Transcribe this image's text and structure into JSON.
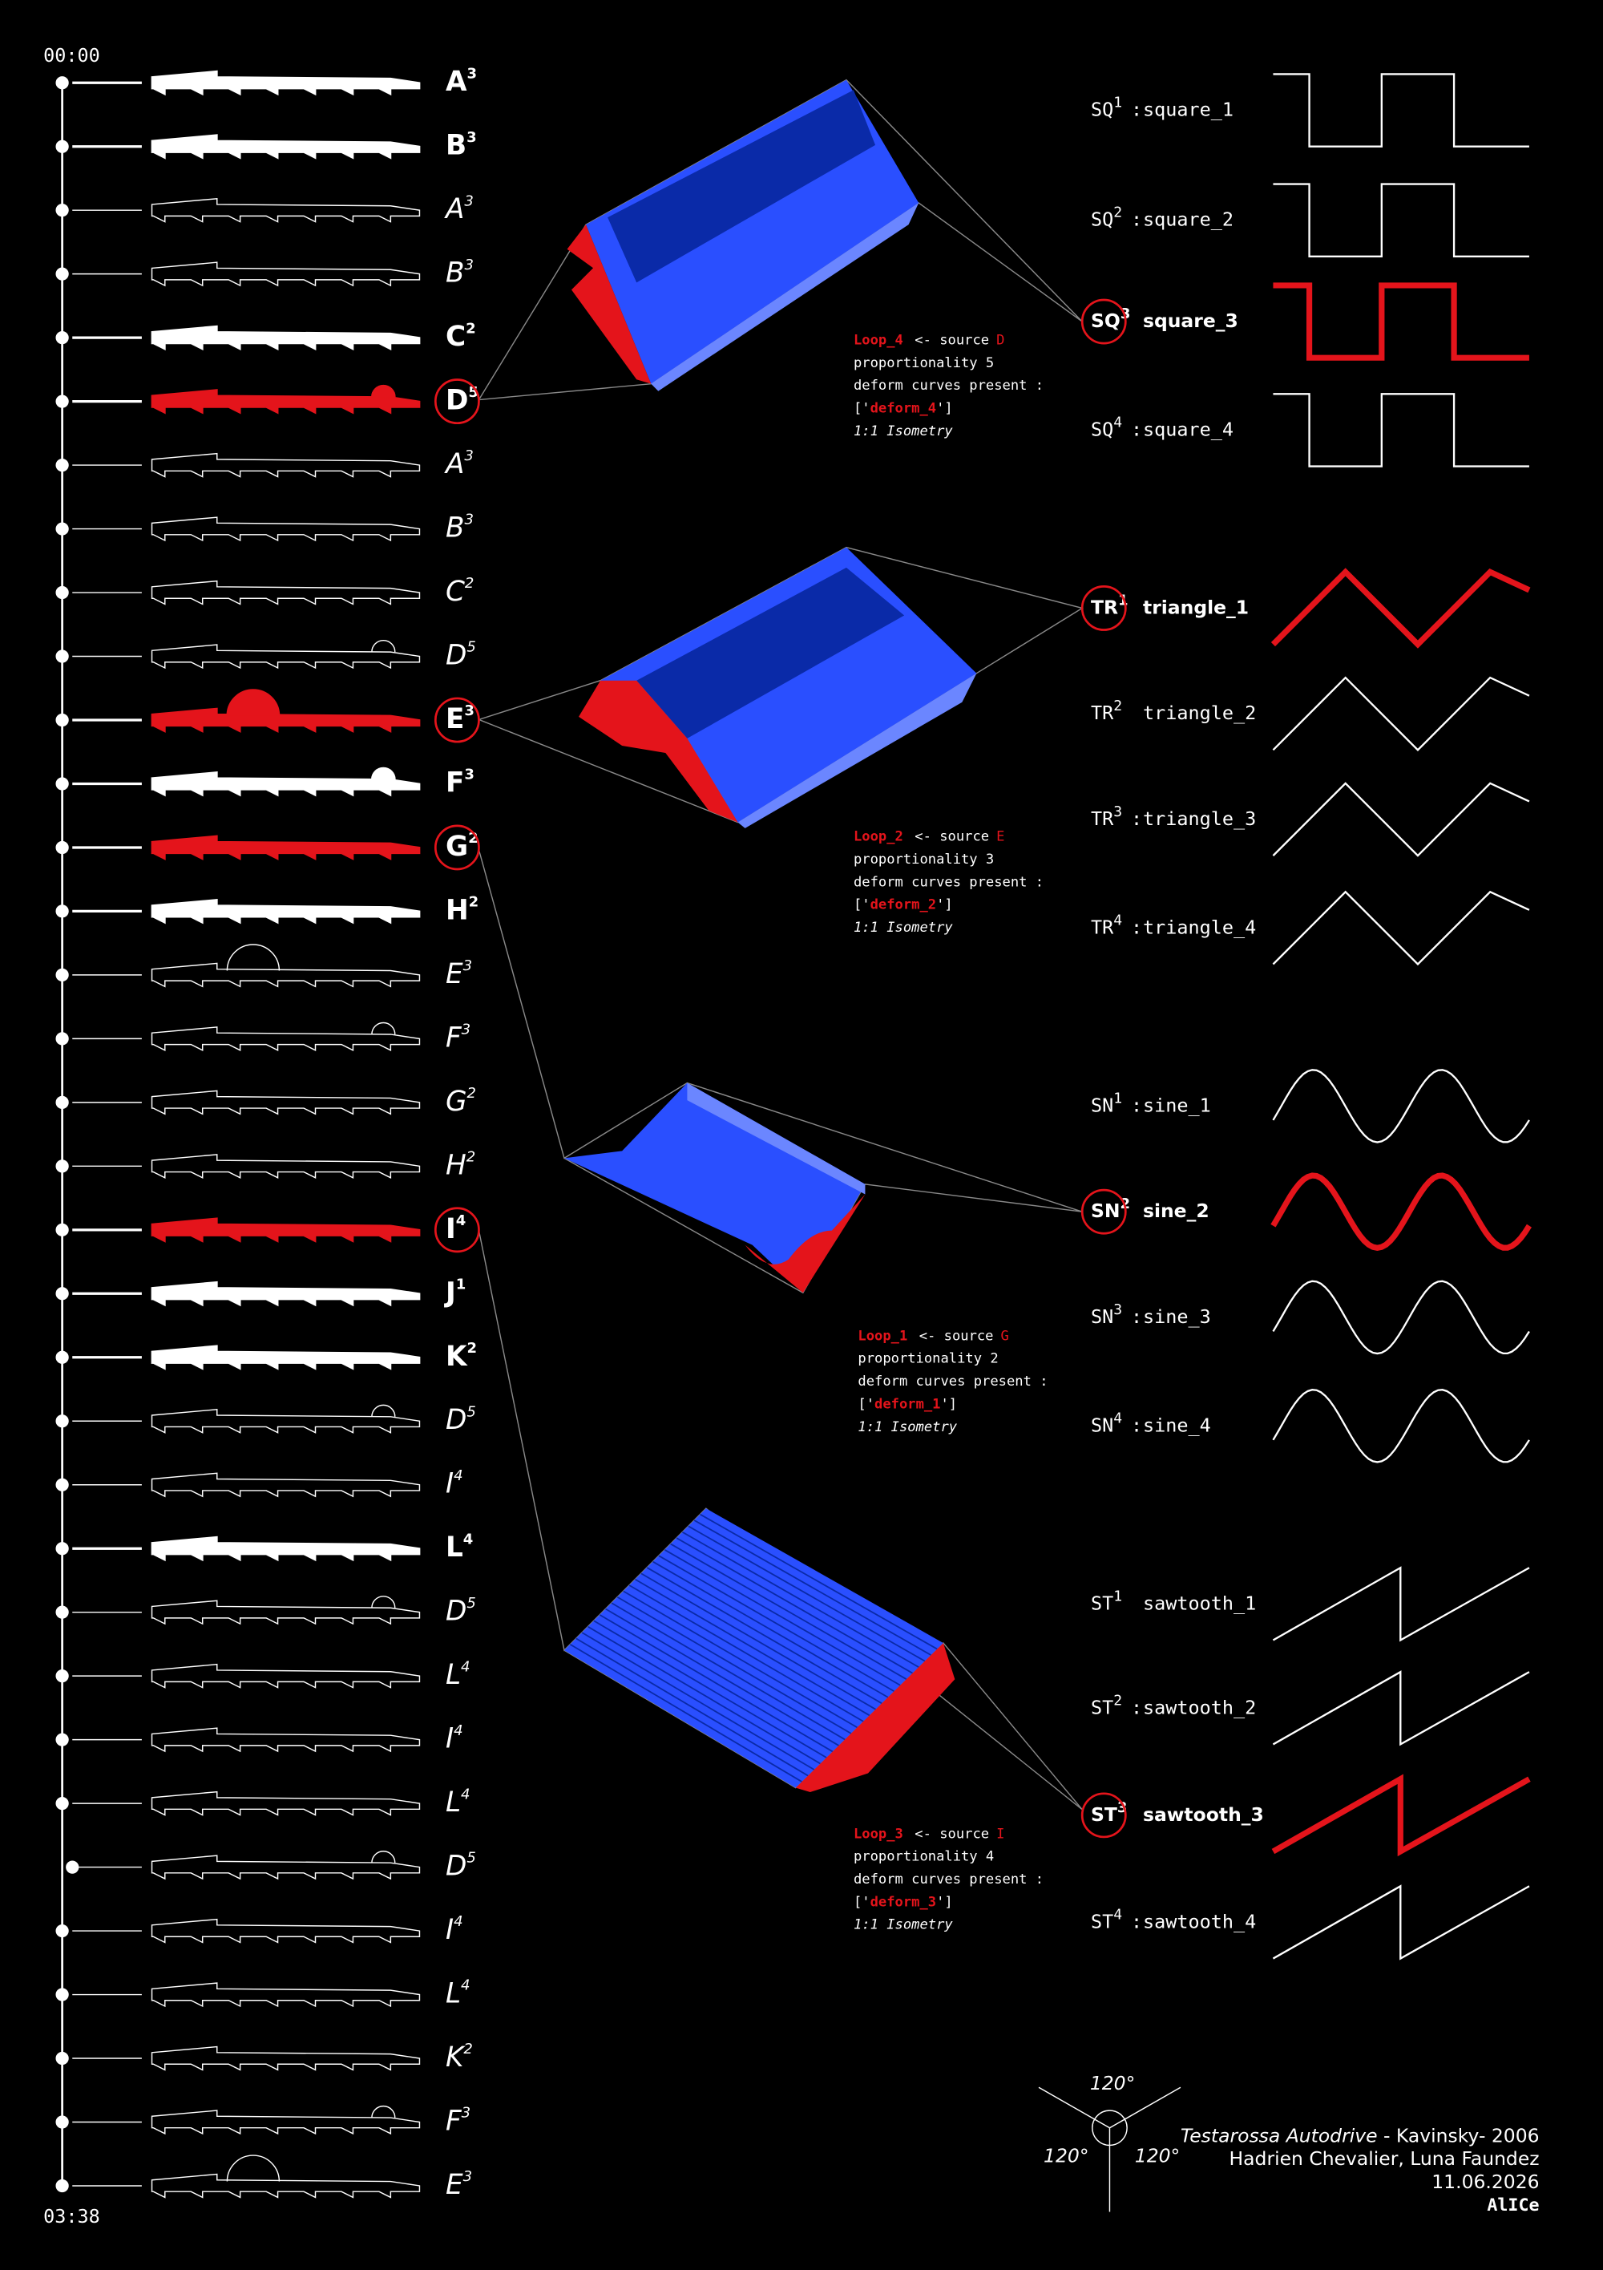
{
  "times": {
    "start": "00:00",
    "end": "03:38"
  },
  "timeline": [
    {
      "letter": "A",
      "sup": "3",
      "style": "filled"
    },
    {
      "letter": "B",
      "sup": "3",
      "style": "filled"
    },
    {
      "letter": "A",
      "sup": "3",
      "style": "outline"
    },
    {
      "letter": "B",
      "sup": "3",
      "style": "outline"
    },
    {
      "letter": "C",
      "sup": "2",
      "style": "filled"
    },
    {
      "letter": "D",
      "sup": "5",
      "style": "red"
    },
    {
      "letter": "A",
      "sup": "3",
      "style": "outline"
    },
    {
      "letter": "B",
      "sup": "3",
      "style": "outline"
    },
    {
      "letter": "C",
      "sup": "2",
      "style": "outline"
    },
    {
      "letter": "D",
      "sup": "5",
      "style": "outline"
    },
    {
      "letter": "E",
      "sup": "3",
      "style": "red"
    },
    {
      "letter": "F",
      "sup": "3",
      "style": "filled"
    },
    {
      "letter": "G",
      "sup": "2",
      "style": "red"
    },
    {
      "letter": "H",
      "sup": "2",
      "style": "filled"
    },
    {
      "letter": "E",
      "sup": "3",
      "style": "outline"
    },
    {
      "letter": "F",
      "sup": "3",
      "style": "outline"
    },
    {
      "letter": "G",
      "sup": "2",
      "style": "outline"
    },
    {
      "letter": "H",
      "sup": "2",
      "style": "outline"
    },
    {
      "letter": "I",
      "sup": "4",
      "style": "red"
    },
    {
      "letter": "J",
      "sup": "1",
      "style": "filled"
    },
    {
      "letter": "K",
      "sup": "2",
      "style": "filled"
    },
    {
      "letter": "D",
      "sup": "5",
      "style": "outline"
    },
    {
      "letter": "I",
      "sup": "4",
      "style": "outline"
    },
    {
      "letter": "L",
      "sup": "4",
      "style": "filled"
    },
    {
      "letter": "D",
      "sup": "5",
      "style": "outline"
    },
    {
      "letter": "L",
      "sup": "4",
      "style": "outline"
    },
    {
      "letter": "I",
      "sup": "4",
      "style": "outline"
    },
    {
      "letter": "L",
      "sup": "4",
      "style": "outline"
    },
    {
      "letter": "D",
      "sup": "5",
      "style": "outline"
    },
    {
      "letter": "I",
      "sup": "4",
      "style": "outline"
    },
    {
      "letter": "L",
      "sup": "4",
      "style": "outline"
    },
    {
      "letter": "K",
      "sup": "2",
      "style": "outline"
    },
    {
      "letter": "F",
      "sup": "3",
      "style": "outline"
    },
    {
      "letter": "E",
      "sup": "3",
      "style": "outline"
    }
  ],
  "waves": [
    {
      "code": "SQ",
      "sup": "1",
      "sep": ":",
      "name": "square_1",
      "shape": "square"
    },
    {
      "code": "SQ",
      "sup": "2",
      "sep": ":",
      "name": "square_2",
      "shape": "square"
    },
    {
      "code": "SQ",
      "sup": "3",
      "name": "square_3",
      "shape": "square",
      "highlight": true
    },
    {
      "code": "SQ",
      "sup": "4",
      "sep": ":",
      "name": "square_4",
      "shape": "square"
    },
    {
      "code": "TR",
      "sup": "1",
      "name": "triangle_1",
      "shape": "triangle",
      "highlight": true
    },
    {
      "code": "TR",
      "sup": "2",
      "name": "triangle_2",
      "shape": "triangle"
    },
    {
      "code": "TR",
      "sup": "3",
      "sep": ":",
      "name": "triangle_3",
      "shape": "triangle"
    },
    {
      "code": "TR",
      "sup": "4",
      "sep": ":",
      "name": "triangle_4",
      "shape": "triangle"
    },
    {
      "code": "SN",
      "sup": "1",
      "sep": ":",
      "name": "sine_1",
      "shape": "sine"
    },
    {
      "code": "SN",
      "sup": "2",
      "name": "sine_2",
      "shape": "sine",
      "highlight": true
    },
    {
      "code": "SN",
      "sup": "3",
      "sep": ":",
      "name": "sine_3",
      "shape": "sine"
    },
    {
      "code": "SN",
      "sup": "4",
      "sep": ":",
      "name": "sine_4",
      "shape": "sine"
    },
    {
      "code": "ST",
      "sup": "1",
      "name": "sawtooth_1",
      "shape": "sawtooth"
    },
    {
      "code": "ST",
      "sup": "2",
      "sep": ":",
      "name": "sawtooth_2",
      "shape": "sawtooth"
    },
    {
      "code": "ST",
      "sup": "3",
      "name": "sawtooth_3",
      "shape": "sawtooth",
      "highlight": true
    },
    {
      "code": "ST",
      "sup": "4",
      "sep": ":",
      "name": "sawtooth_4",
      "shape": "sawtooth"
    }
  ],
  "loops": [
    {
      "name": "Loop_4",
      "arrow": "<- source",
      "source": "D",
      "proportionality": "proportionality 5",
      "deform_label": "deform curves present :",
      "deform_open": "['",
      "deform": "deform_4",
      "deform_close": "']",
      "isometry": "1:1 Isometry"
    },
    {
      "name": "Loop_2",
      "arrow": "<- source",
      "source": "E",
      "proportionality": "proportionality 3",
      "deform_label": "deform curves present :",
      "deform_open": "['",
      "deform": "deform_2",
      "deform_close": "']",
      "isometry": "1:1 Isometry"
    },
    {
      "name": "Loop_1",
      "arrow": "<- source",
      "source": "G",
      "proportionality": "proportionality 2",
      "deform_label": "deform curves present :",
      "deform_open": "['",
      "deform": "deform_1",
      "deform_close": "']",
      "isometry": "1:1 Isometry"
    },
    {
      "name": "Loop_3",
      "arrow": "<- source",
      "source": "I",
      "proportionality": "proportionality 4",
      "deform_label": "deform curves present :",
      "deform_open": "['",
      "deform": "deform_3",
      "deform_close": "']",
      "isometry": "1:1 Isometry"
    }
  ],
  "axonometry": {
    "angles": [
      "120°",
      "120°",
      "120°"
    ]
  },
  "credits": {
    "title": "Testarossa Autodrive",
    "artist": " - Kavinsky- 2006",
    "authors": "Hadrien Chevalier, Luna Faundez",
    "date": "11.06.2026",
    "studio": "AlICe"
  }
}
